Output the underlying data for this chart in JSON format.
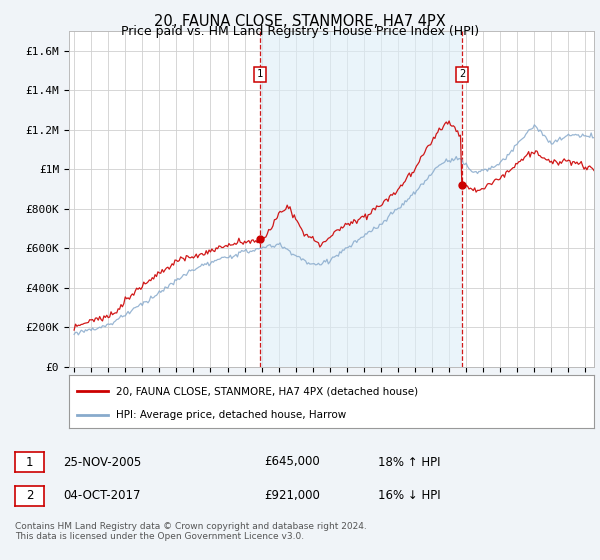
{
  "title": "20, FAUNA CLOSE, STANMORE, HA7 4PX",
  "subtitle": "Price paid vs. HM Land Registry's House Price Index (HPI)",
  "yticks": [
    0,
    200000,
    400000,
    600000,
    800000,
    1000000,
    1200000,
    1400000,
    1600000
  ],
  "ytick_labels": [
    "£0",
    "£200K",
    "£400K",
    "£600K",
    "£800K",
    "£1M",
    "£1.2M",
    "£1.4M",
    "£1.6M"
  ],
  "legend_line1": "20, FAUNA CLOSE, STANMORE, HA7 4PX (detached house)",
  "legend_line2": "HPI: Average price, detached house, Harrow",
  "sale1_date": "25-NOV-2005",
  "sale1_price": "£645,000",
  "sale1_hpi": "18% ↑ HPI",
  "sale2_date": "04-OCT-2017",
  "sale2_price": "£921,000",
  "sale2_hpi": "16% ↓ HPI",
  "footer": "Contains HM Land Registry data © Crown copyright and database right 2024.\nThis data is licensed under the Open Government Licence v3.0.",
  "line_color_red": "#cc0000",
  "line_color_blue": "#88aacc",
  "shade_color": "#ddeeff",
  "background_color": "#f0f4f8",
  "title_fontsize": 10.5,
  "subtitle_fontsize": 9,
  "tick_fontsize": 8
}
